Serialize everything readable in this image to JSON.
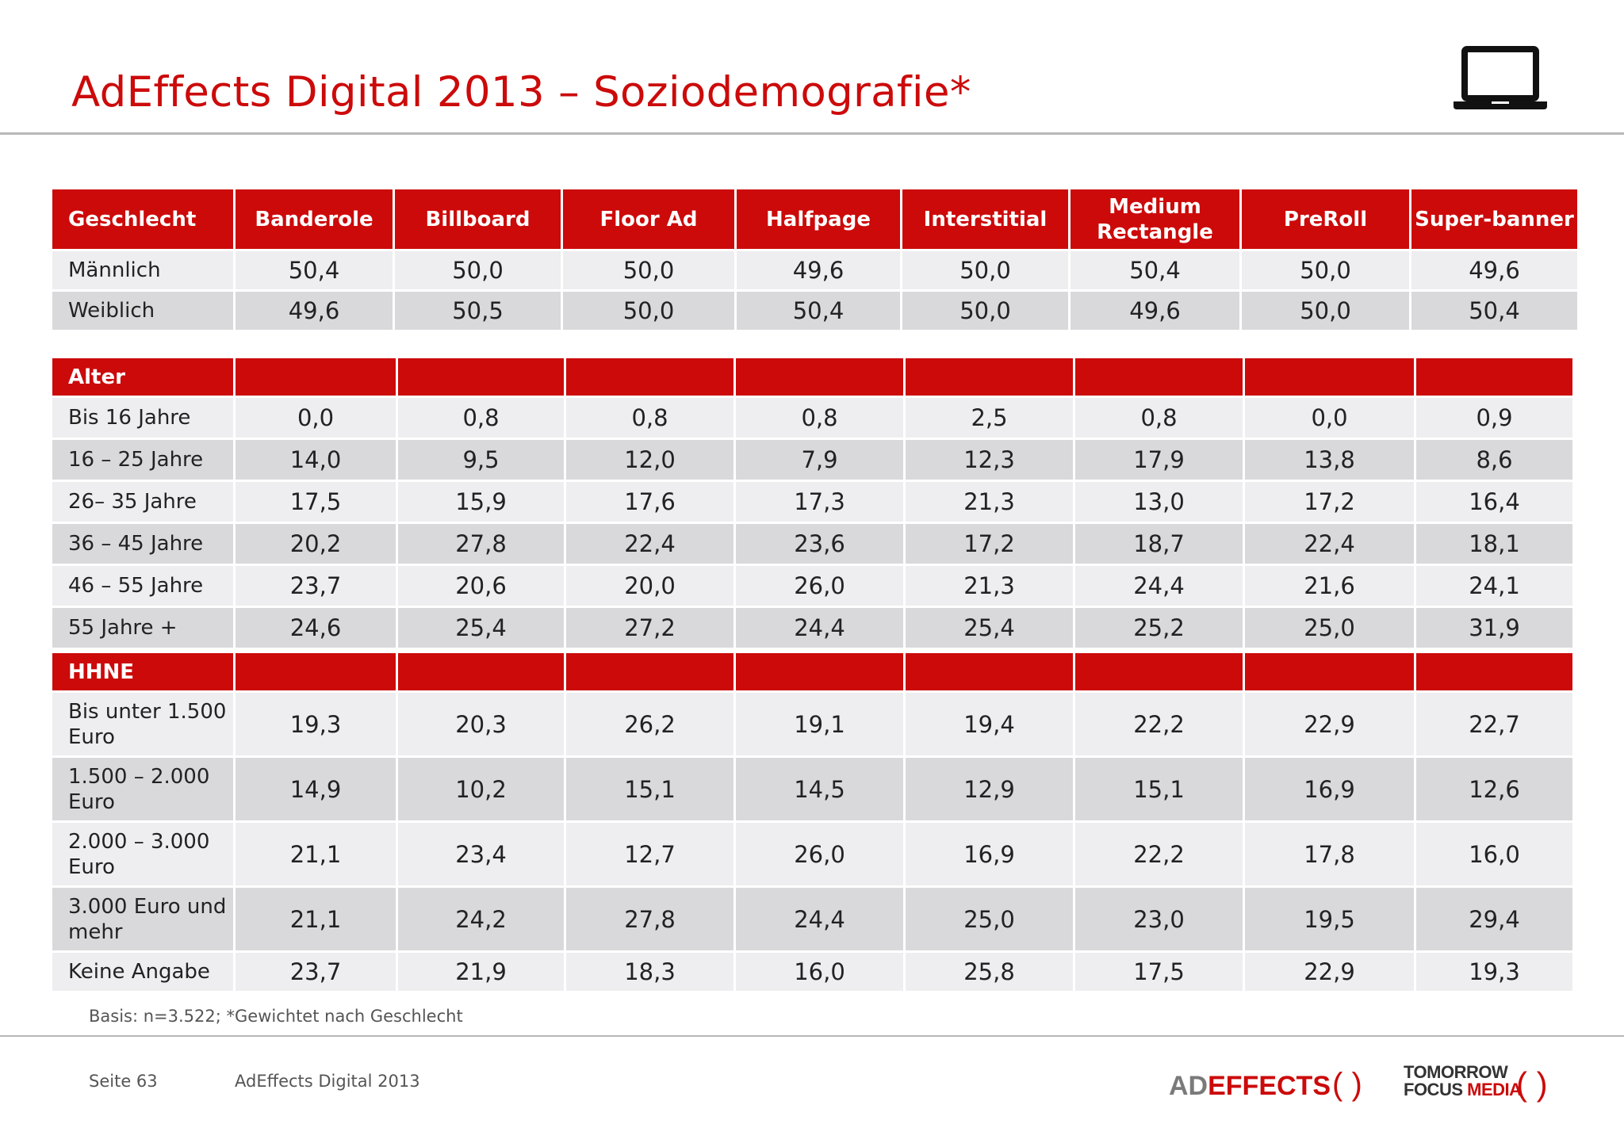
{
  "title": "AdEffects Digital 2013 – Soziodemografie*",
  "icons": {
    "device": "laptop-icon"
  },
  "colors": {
    "accent": "#cc0a0a",
    "row_light": "#eeeef0",
    "row_dark": "#d9d9dc"
  },
  "columns": [
    "Banderole",
    "Billboard",
    "Floor Ad",
    "Halfpage",
    "Interstitial",
    "Medium Rectangle",
    "PreRoll",
    "Super-banner"
  ],
  "sections": [
    {
      "header": "Geschlecht",
      "rows": [
        {
          "label": "Männlich",
          "values": [
            "50,4",
            "50,0",
            "50,0",
            "49,6",
            "50,0",
            "50,4",
            "50,0",
            "49,6"
          ]
        },
        {
          "label": "Weiblich",
          "values": [
            "49,6",
            "50,5",
            "50,0",
            "50,4",
            "50,0",
            "49,6",
            "50,0",
            "50,4"
          ]
        }
      ]
    },
    {
      "header": "Alter",
      "rows": [
        {
          "label": "Bis 16 Jahre",
          "values": [
            "0,0",
            "0,8",
            "0,8",
            "0,8",
            "2,5",
            "0,8",
            "0,0",
            "0,9"
          ]
        },
        {
          "label": "16 – 25 Jahre",
          "values": [
            "14,0",
            "9,5",
            "12,0",
            "7,9",
            "12,3",
            "17,9",
            "13,8",
            "8,6"
          ]
        },
        {
          "label": "26– 35 Jahre",
          "values": [
            "17,5",
            "15,9",
            "17,6",
            "17,3",
            "21,3",
            "13,0",
            "17,2",
            "16,4"
          ]
        },
        {
          "label": "36 – 45 Jahre",
          "values": [
            "20,2",
            "27,8",
            "22,4",
            "23,6",
            "17,2",
            "18,7",
            "22,4",
            "18,1"
          ]
        },
        {
          "label": "46 – 55 Jahre",
          "values": [
            "23,7",
            "20,6",
            "20,0",
            "26,0",
            "21,3",
            "24,4",
            "21,6",
            "24,1"
          ]
        },
        {
          "label": "55 Jahre +",
          "values": [
            "24,6",
            "25,4",
            "27,2",
            "24,4",
            "25,4",
            "25,2",
            "25,0",
            "31,9"
          ]
        }
      ]
    },
    {
      "header": "HHNE",
      "rows": [
        {
          "label": "Bis unter 1.500 Euro",
          "values": [
            "19,3",
            "20,3",
            "26,2",
            "19,1",
            "19,4",
            "22,2",
            "22,9",
            "22,7"
          ]
        },
        {
          "label": "1.500 – 2.000 Euro",
          "values": [
            "14,9",
            "10,2",
            "15,1",
            "14,5",
            "12,9",
            "15,1",
            "16,9",
            "12,6"
          ]
        },
        {
          "label": "2.000 – 3.000 Euro",
          "values": [
            "21,1",
            "23,4",
            "12,7",
            "26,0",
            "16,9",
            "22,2",
            "17,8",
            "16,0"
          ]
        },
        {
          "label": "3.000 Euro und mehr",
          "values": [
            "21,1",
            "24,2",
            "27,8",
            "24,4",
            "25,0",
            "23,0",
            "19,5",
            "29,4"
          ]
        },
        {
          "label": "Keine Angabe",
          "values": [
            "23,7",
            "21,9",
            "18,3",
            "16,0",
            "25,8",
            "17,5",
            "22,9",
            "19,3"
          ]
        }
      ]
    }
  ],
  "footnote": "Basis: n=3.522; *Gewichtet nach Geschlecht",
  "footer": {
    "page": "Seite 63",
    "document": "AdEffects Digital 2013",
    "logo_adeffects": {
      "part1": "AD",
      "part2": "EFFECTS"
    },
    "logo_tfm": {
      "line1": "TOMORROW",
      "line2a": "FOCUS",
      "line2b": "MEDIA"
    }
  }
}
